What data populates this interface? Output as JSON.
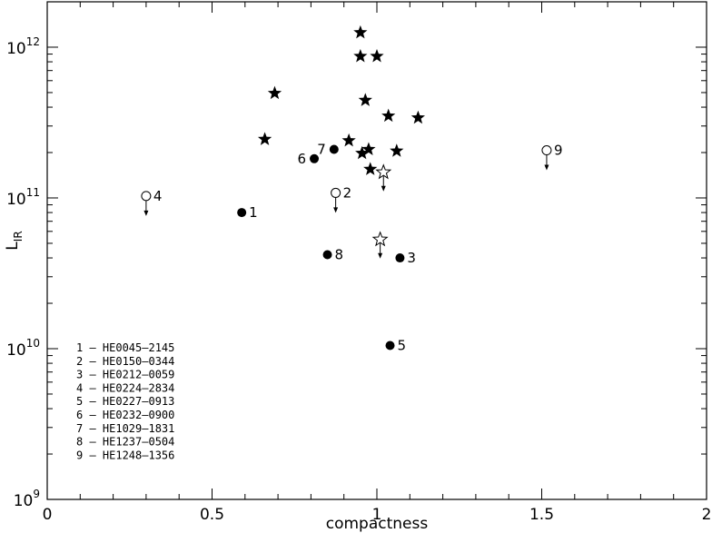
{
  "chart_data": {
    "type": "scatter",
    "xlabel": "compactness",
    "ylabel": "L",
    "ylabel_sub": "IR",
    "xlim": [
      0,
      2
    ],
    "ylim": [
      1000000000.0,
      2000000000000.0
    ],
    "yscale": "log",
    "grid": false,
    "x_ticks": [
      {
        "value": 0,
        "label": "0"
      },
      {
        "value": 0.5,
        "label": "0.5"
      },
      {
        "value": 1,
        "label": "1"
      },
      {
        "value": 1.5,
        "label": "1.5"
      },
      {
        "value": 2,
        "label": "2"
      }
    ],
    "y_ticks": [
      {
        "value": 1000000000.0,
        "label_base": "10",
        "label_exp": "9"
      },
      {
        "value": 10000000000.0,
        "label_base": "10",
        "label_exp": "10"
      },
      {
        "value": 100000000000.0,
        "label_base": "10",
        "label_exp": "11"
      },
      {
        "value": 1000000000000.0,
        "label_base": "10",
        "label_exp": "12"
      }
    ],
    "series": [
      {
        "marker": "filled-star",
        "points": [
          {
            "x": 0.95,
            "y": 1250000000000.0
          },
          {
            "x": 0.95,
            "y": 870000000000.0
          },
          {
            "x": 1.0,
            "y": 870000000000.0
          },
          {
            "x": 0.69,
            "y": 495000000000.0
          },
          {
            "x": 0.965,
            "y": 445000000000.0
          },
          {
            "x": 1.035,
            "y": 350000000000.0
          },
          {
            "x": 1.125,
            "y": 340000000000.0
          },
          {
            "x": 0.66,
            "y": 245000000000.0
          },
          {
            "x": 0.915,
            "y": 240000000000.0
          },
          {
            "x": 0.975,
            "y": 210000000000.0
          },
          {
            "x": 1.06,
            "y": 205000000000.0
          },
          {
            "x": 0.955,
            "y": 198000000000.0
          },
          {
            "x": 0.98,
            "y": 155000000000.0
          }
        ]
      },
      {
        "marker": "open-star-upper-limit",
        "points": [
          {
            "x": 1.02,
            "y": 148000000000.0
          },
          {
            "x": 1.01,
            "y": 53000000000.0
          }
        ]
      },
      {
        "marker": "filled-circle",
        "points": [
          {
            "x": 0.59,
            "y": 80000000000.0,
            "label": "1"
          },
          {
            "x": 1.07,
            "y": 40000000000.0,
            "label": "3"
          },
          {
            "x": 1.04,
            "y": 10500000000.0,
            "label": "5"
          },
          {
            "x": 0.81,
            "y": 182000000000.0,
            "label": "6"
          },
          {
            "x": 0.87,
            "y": 210000000000.0,
            "label": "7"
          },
          {
            "x": 0.85,
            "y": 42000000000.0,
            "label": "8"
          }
        ]
      },
      {
        "marker": "open-circle-upper-limit",
        "points": [
          {
            "x": 0.875,
            "y": 108000000000.0,
            "label": "2"
          },
          {
            "x": 0.3,
            "y": 103000000000.0,
            "label": "4"
          },
          {
            "x": 1.515,
            "y": 207000000000.0,
            "label": "9"
          }
        ]
      }
    ],
    "legend_entries": [
      "1 – HE0045–2145",
      "2 – HE0150–0344",
      "3 – HE0212–0059",
      "4 – HE0224–2834",
      "5 – HE0227–0913",
      "6 – HE0232–0900",
      "7 – HE1029–1831",
      "8 – HE1237–0504",
      "9 – HE1248–1356"
    ]
  }
}
